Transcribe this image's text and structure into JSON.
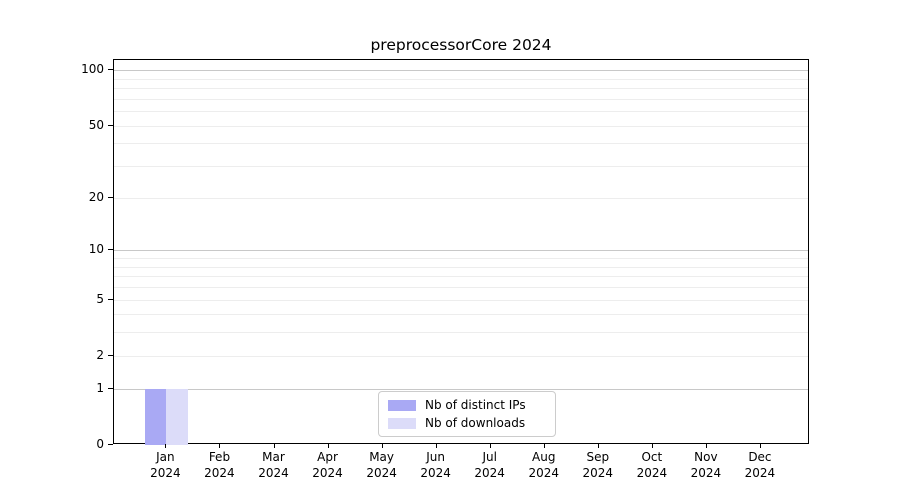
{
  "chart_data": {
    "type": "bar",
    "title": "preprocessorCore 2024",
    "categories": [
      "Jan 2024",
      "Feb 2024",
      "Mar 2024",
      "Apr 2024",
      "May 2024",
      "Jun 2024",
      "Jul 2024",
      "Aug 2024",
      "Sep 2024",
      "Oct 2024",
      "Nov 2024",
      "Dec 2024"
    ],
    "series": [
      {
        "name": "Nb of distinct IPs",
        "color": "#a9a9f4",
        "values": [
          1,
          0,
          0,
          0,
          0,
          0,
          0,
          0,
          0,
          0,
          0,
          0
        ]
      },
      {
        "name": "Nb of downloads",
        "color": "#dcdcf9",
        "values": [
          1,
          0,
          0,
          0,
          0,
          0,
          0,
          0,
          0,
          0,
          0,
          0
        ]
      }
    ],
    "xlabel": "",
    "ylabel": "",
    "yscale": "log1p",
    "ylim": [
      0,
      114
    ],
    "yticks": [
      0,
      1,
      2,
      5,
      10,
      20,
      50,
      100
    ],
    "major_gridlines": [
      1,
      10,
      100
    ],
    "minor_gridlines": [
      2,
      3,
      4,
      5,
      6,
      7,
      8,
      9,
      20,
      30,
      40,
      50,
      60,
      70,
      80,
      90
    ],
    "grid": true,
    "legend_position": "lower center",
    "colors": {
      "axis": "#000000",
      "major_grid": "#c8c8c8",
      "minor_grid": "#ededed",
      "background": "#ffffff"
    }
  }
}
